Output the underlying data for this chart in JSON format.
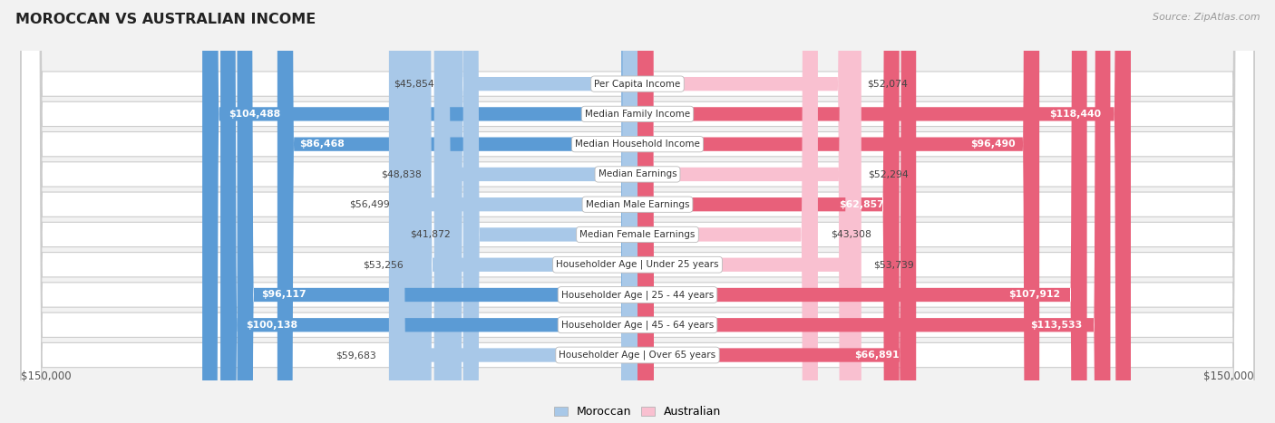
{
  "title": "MOROCCAN VS AUSTRALIAN INCOME",
  "source": "Source: ZipAtlas.com",
  "categories": [
    "Per Capita Income",
    "Median Family Income",
    "Median Household Income",
    "Median Earnings",
    "Median Male Earnings",
    "Median Female Earnings",
    "Householder Age | Under 25 years",
    "Householder Age | 25 - 44 years",
    "Householder Age | 45 - 64 years",
    "Householder Age | Over 65 years"
  ],
  "moroccan_values": [
    45854,
    104488,
    86468,
    48838,
    56499,
    41872,
    53256,
    96117,
    100138,
    59683
  ],
  "australian_values": [
    52074,
    118440,
    96490,
    52294,
    62857,
    43308,
    53739,
    107912,
    113533,
    66891
  ],
  "moroccan_labels": [
    "$45,854",
    "$104,488",
    "$86,468",
    "$48,838",
    "$56,499",
    "$41,872",
    "$53,256",
    "$96,117",
    "$100,138",
    "$59,683"
  ],
  "australian_labels": [
    "$52,074",
    "$118,440",
    "$96,490",
    "$52,294",
    "$62,857",
    "$43,308",
    "$53,739",
    "$107,912",
    "$113,533",
    "$66,891"
  ],
  "moroccan_color_light": "#a8c8e8",
  "moroccan_color_dark": "#5b9bd5",
  "australian_color_light": "#f9c0d0",
  "australian_color_dark": "#e8607a",
  "label_threshold": 60000,
  "max_value": 150000,
  "xlabel_left": "$150,000",
  "xlabel_right": "$150,000",
  "background_color": "#f2f2f2",
  "row_bg": "#ffffff",
  "row_border": "#cccccc",
  "legend_moroccan": "Moroccan",
  "legend_australian": "Australian"
}
